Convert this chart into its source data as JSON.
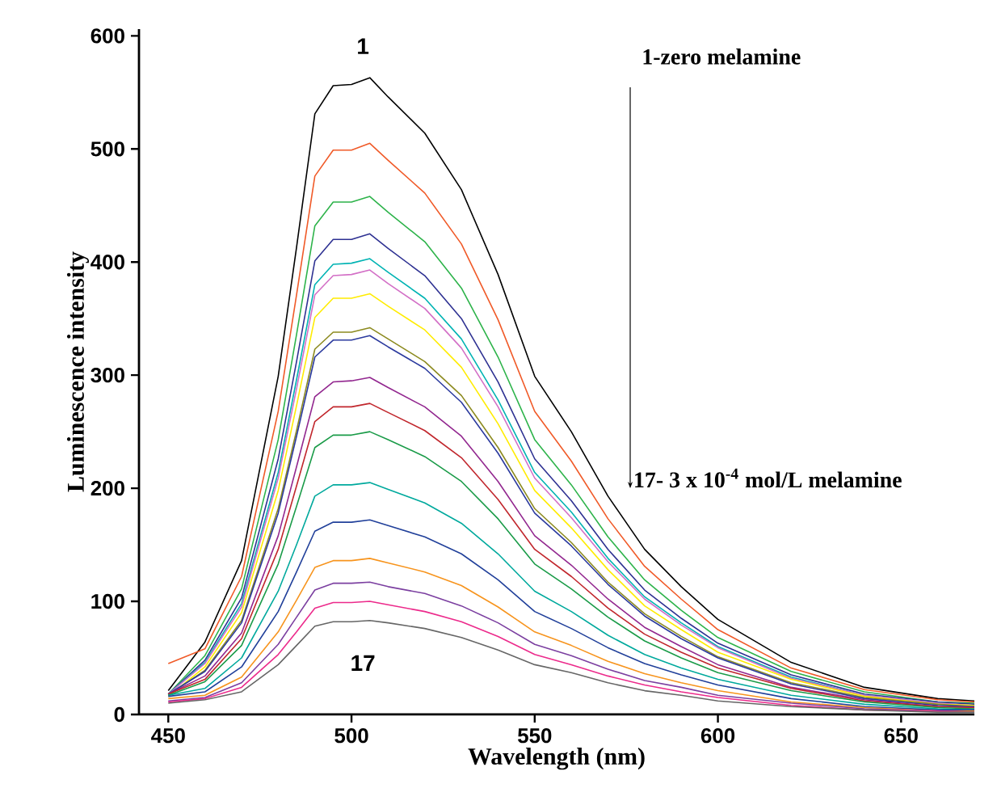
{
  "chart_data": {
    "type": "line",
    "xlabel": "Wavelength (nm)",
    "ylabel": "Luminescence intensity",
    "x": [
      450,
      460,
      470,
      480,
      485,
      490,
      495,
      500,
      505,
      510,
      520,
      530,
      540,
      550,
      560,
      570,
      580,
      590,
      600,
      620,
      640,
      660,
      670
    ],
    "xlim": [
      442,
      670
    ],
    "xticks": [
      450,
      500,
      550,
      600,
      650
    ],
    "ylim": [
      0,
      606
    ],
    "yticks": [
      0,
      100,
      200,
      300,
      400,
      500,
      600
    ],
    "series": [
      {
        "color": "#000000",
        "values": [
          21,
          64,
          136,
          299,
          413,
          531,
          556,
          557,
          563,
          546,
          514,
          464,
          389,
          299,
          250,
          193,
          146,
          113,
          84,
          46,
          24,
          14,
          12
        ]
      },
      {
        "color": "#f05a28",
        "values": [
          45,
          58,
          122,
          268,
          371,
          476,
          499,
          499,
          505,
          490,
          461,
          416,
          349,
          268,
          224,
          173,
          131,
          102,
          75,
          41,
          22,
          13,
          11
        ]
      },
      {
        "color": "#2db34a",
        "values": [
          18,
          52,
          111,
          243,
          336,
          432,
          453,
          453,
          458,
          444,
          418,
          377,
          316,
          243,
          203,
          157,
          119,
          92,
          68,
          38,
          20,
          11,
          10
        ]
      },
      {
        "color": "#2e3192",
        "values": [
          18,
          48,
          103,
          226,
          312,
          401,
          420,
          420,
          425,
          412,
          388,
          350,
          294,
          226,
          189,
          146,
          110,
          85,
          63,
          35,
          18,
          11,
          9
        ]
      },
      {
        "color": "#00b3b3",
        "values": [
          18,
          46,
          98,
          214,
          296,
          380,
          398,
          399,
          403,
          391,
          368,
          332,
          278,
          214,
          179,
          138,
          104,
          81,
          60,
          33,
          17,
          10,
          8
        ]
      },
      {
        "color": "#d36fc6",
        "values": [
          18,
          45,
          95,
          209,
          288,
          371,
          388,
          389,
          393,
          381,
          359,
          324,
          272,
          209,
          174,
          135,
          102,
          79,
          59,
          32,
          17,
          10,
          8
        ]
      },
      {
        "color": "#ffec00",
        "values": [
          16,
          42,
          90,
          198,
          273,
          351,
          368,
          368,
          372,
          361,
          340,
          307,
          257,
          198,
          165,
          128,
          96,
          75,
          55,
          31,
          16,
          9,
          8
        ]
      },
      {
        "color": "#8c8a1f",
        "values": [
          17,
          39,
          83,
          182,
          251,
          323,
          338,
          338,
          342,
          332,
          312,
          282,
          236,
          182,
          152,
          117,
          89,
          69,
          51,
          28,
          15,
          9,
          7
        ]
      },
      {
        "color": "#2b3a9e",
        "values": [
          18,
          38,
          81,
          178,
          246,
          316,
          331,
          331,
          335,
          325,
          306,
          276,
          231,
          178,
          149,
          115,
          87,
          67,
          50,
          27,
          14,
          8,
          7
        ]
      },
      {
        "color": "#92278f",
        "values": [
          18,
          34,
          72,
          158,
          219,
          281,
          294,
          295,
          298,
          289,
          272,
          246,
          206,
          158,
          132,
          102,
          77,
          60,
          44,
          24,
          13,
          7,
          6
        ]
      },
      {
        "color": "#c1272d",
        "values": [
          18,
          31,
          67,
          146,
          202,
          259,
          272,
          272,
          275,
          267,
          251,
          227,
          190,
          146,
          122,
          94,
          71,
          55,
          41,
          23,
          12,
          7,
          6
        ]
      },
      {
        "color": "#1a9b48",
        "values": [
          17,
          29,
          61,
          133,
          184,
          236,
          247,
          247,
          250,
          243,
          228,
          206,
          173,
          133,
          111,
          86,
          65,
          50,
          37,
          21,
          11,
          6,
          5
        ]
      },
      {
        "color": "#00a99d",
        "values": [
          17,
          23,
          50,
          109,
          150,
          193,
          203,
          203,
          205,
          199,
          187,
          169,
          142,
          109,
          91,
          70,
          53,
          41,
          31,
          17,
          9,
          5,
          4
        ]
      },
      {
        "color": "#21409a",
        "values": [
          16,
          20,
          42,
          91,
          126,
          162,
          170,
          170,
          172,
          167,
          157,
          142,
          119,
          91,
          76,
          59,
          45,
          35,
          26,
          14,
          7,
          4,
          4
        ]
      },
      {
        "color": "#f7941d",
        "values": [
          14,
          17,
          33,
          73,
          101,
          130,
          136,
          136,
          138,
          134,
          126,
          114,
          95,
          73,
          61,
          47,
          36,
          28,
          21,
          11,
          6,
          3,
          3
        ]
      },
      {
        "color": "#7b3fa0",
        "values": [
          12,
          15,
          28,
          62,
          86,
          110,
          116,
          116,
          117,
          113,
          107,
          96,
          81,
          62,
          52,
          40,
          30,
          24,
          17,
          10,
          5,
          3,
          2
        ]
      },
      {
        "color": "#ec2a8b",
        "values": [
          11,
          14,
          24,
          53,
          73,
          94,
          99,
          99,
          100,
          97,
          91,
          82,
          69,
          53,
          44,
          34,
          26,
          20,
          15,
          8,
          4,
          3,
          2
        ]
      },
      {
        "color": "#666666",
        "values": [
          10,
          13,
          20,
          44,
          61,
          78,
          82,
          82,
          83,
          81,
          76,
          68,
          57,
          44,
          37,
          28,
          21,
          17,
          12,
          7,
          4,
          2,
          2
        ]
      }
    ],
    "annotations": [
      "1",
      "17",
      "1-zero melamine",
      "17- 3 x 10$^{-4}$ mol/L melamine"
    ]
  }
}
